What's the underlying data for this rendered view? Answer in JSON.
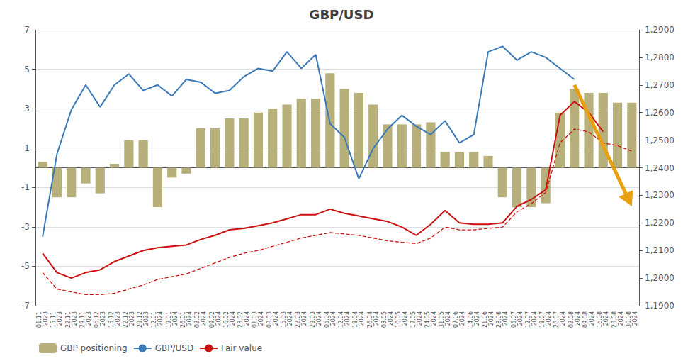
{
  "chart_data": {
    "type": "bar",
    "title": "GBP/USD",
    "categories": [
      "01.11\n2023",
      "15.11\n2023",
      "22.11\n2023",
      "29.11\n2023",
      "06.12\n2023",
      "15.12\n2023",
      "22.12\n2023",
      "29.12\n2023",
      "12.01\n2024",
      "19.01\n2024",
      "26.01\n2024",
      "02.02\n2024",
      "09.02\n2024",
      "16.02\n2024",
      "23.02\n2024",
      "01.03\n2024",
      "08.03\n2024",
      "15.03\n2024",
      "22.03\n2024",
      "29.03\n2024",
      "05.04\n2024",
      "12.04\n2024",
      "19.04\n2024",
      "26.04\n2024",
      "03.05\n2024",
      "10.05\n2024",
      "17.05\n2024",
      "24.05\n2024",
      "31.05\n2024",
      "07.06\n2024",
      "14.06\n2024",
      "21.06\n2024",
      "28.06\n2024",
      "05.07\n2024",
      "12.07\n2024",
      "19.07\n2024",
      "26.07\n2024",
      "02.08\n2024",
      "09.08\n2024",
      "16.08\n2024",
      "23.08\n2024",
      "30.08\n2024"
    ],
    "series": [
      {
        "name": "GBP positioning",
        "type": "bar",
        "color": "#b8b07a",
        "values": [
          0.3,
          -1.5,
          -1.5,
          -0.8,
          -1.3,
          0.2,
          1.4,
          1.4,
          -2.0,
          -0.5,
          -0.3,
          2.0,
          2.0,
          2.5,
          2.5,
          2.8,
          3.0,
          3.2,
          3.5,
          3.5,
          4.8,
          4.0,
          3.8,
          3.2,
          2.2,
          2.2,
          2.2,
          2.3,
          0.8,
          0.8,
          0.8,
          0.6,
          -1.5,
          -2.0,
          -2.0,
          -1.8,
          2.8,
          4.0,
          3.8,
          3.8,
          3.3,
          3.3
        ]
      },
      {
        "name": "GBP/USD",
        "type": "line",
        "axis": "y2",
        "color": "#3a7ab8",
        "line_style": "solid",
        "values": [
          1.215,
          1.245,
          1.261,
          1.27,
          1.262,
          1.27,
          1.274,
          1.268,
          1.27,
          1.266,
          1.272,
          1.271,
          1.267,
          1.268,
          1.273,
          1.276,
          1.275,
          1.282,
          1.276,
          1.281,
          1.256,
          1.251,
          1.236,
          1.247,
          1.254,
          1.259,
          1.255,
          1.252,
          1.257,
          1.249,
          1.252,
          1.282,
          1.284,
          1.279,
          1.282,
          1.28,
          1.276,
          1.272,
          null,
          null,
          null,
          null
        ]
      },
      {
        "name": "Fair value",
        "type": "line",
        "axis": "y2",
        "color": "#cc1111",
        "line_style": "solid",
        "values": [
          1.209,
          1.202,
          1.2,
          1.202,
          1.203,
          1.206,
          1.208,
          1.21,
          1.211,
          1.2115,
          1.212,
          1.214,
          1.2155,
          1.2175,
          1.218,
          1.219,
          1.22,
          1.2215,
          1.223,
          1.223,
          1.225,
          1.2235,
          1.2225,
          1.2215,
          1.2205,
          1.2185,
          1.2155,
          1.2195,
          1.2245,
          1.22,
          1.2195,
          1.2195,
          1.22,
          1.226,
          1.2285,
          1.232,
          1.259,
          1.264,
          1.26,
          1.253,
          null,
          null
        ]
      },
      {
        "name": "Fair value",
        "type": "line",
        "axis": "y2",
        "color": "#cc1111",
        "line_style": "dashed",
        "values": [
          1.202,
          1.196,
          1.195,
          1.194,
          1.194,
          1.1945,
          1.196,
          1.1975,
          1.1995,
          1.2005,
          1.2015,
          1.2035,
          1.2055,
          1.2075,
          1.209,
          1.21,
          1.2115,
          1.213,
          1.2145,
          1.2155,
          1.2165,
          1.216,
          1.2155,
          1.2145,
          1.2135,
          1.213,
          1.2125,
          1.2145,
          1.2185,
          1.2175,
          1.2175,
          1.218,
          1.2185,
          1.224,
          1.227,
          1.231,
          1.249,
          1.254,
          1.253,
          1.249,
          1.248,
          1.246
        ]
      }
    ],
    "ylim": [
      -7,
      7
    ],
    "yticks": [
      -7,
      -5,
      -3,
      -1,
      1,
      3,
      5,
      7
    ],
    "y2lim": [
      1.19,
      1.29
    ],
    "y2ticks": [
      {
        "value": 1.19,
        "label": "1,1900"
      },
      {
        "value": 1.2,
        "label": "1,2000"
      },
      {
        "value": 1.21,
        "label": "1,2100"
      },
      {
        "value": 1.22,
        "label": "1,2200"
      },
      {
        "value": 1.23,
        "label": "1,2300"
      },
      {
        "value": 1.24,
        "label": "1,2400"
      },
      {
        "value": 1.25,
        "label": "1,2500"
      },
      {
        "value": 1.26,
        "label": "1,2600"
      },
      {
        "value": 1.27,
        "label": "1,2700"
      },
      {
        "value": 1.28,
        "label": "1,2800"
      },
      {
        "value": 1.29,
        "label": "1,2900"
      }
    ],
    "grid": true,
    "legend": "lower left",
    "annotations": [
      {
        "type": "arrow",
        "axis": "y2",
        "from": [
          36.5,
          1.27
        ],
        "to": [
          41.0,
          1.226
        ],
        "color": "#e8a010"
      }
    ]
  }
}
